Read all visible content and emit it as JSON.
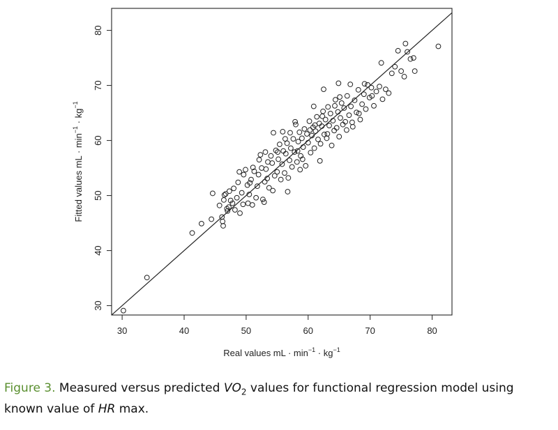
{
  "chart_data": {
    "type": "scatter",
    "xlabel": {
      "prefix": "Real values mL · min",
      "sup1": "−1",
      "mid": " · kg",
      "sup2": "−1"
    },
    "ylabel": {
      "prefix": "Fitted values mL · min",
      "sup1": "−1",
      "mid": " · kg",
      "sup2": "−1"
    },
    "xlim": [
      28.3,
      83.2
    ],
    "ylim": [
      28.3,
      84
    ],
    "xticks": [
      "30",
      "40",
      "50",
      "60",
      "70",
      "80"
    ],
    "yticks": [
      "30",
      "40",
      "50",
      "60",
      "70",
      "80"
    ],
    "xtick_values": [
      30,
      40,
      50,
      60,
      70,
      80
    ],
    "ytick_values": [
      30,
      40,
      50,
      60,
      70,
      80
    ],
    "reference_line": {
      "from": [
        28.3,
        28.3
      ],
      "to": [
        84,
        84
      ]
    },
    "marker": "open-circle",
    "color": "#222222",
    "points": [
      [
        30.2,
        29.1
      ],
      [
        34,
        35.1
      ],
      [
        41.3,
        43.2
      ],
      [
        42.8,
        44.9
      ],
      [
        44.4,
        45.7
      ],
      [
        44.6,
        50.4
      ],
      [
        45.7,
        48.2
      ],
      [
        46.1,
        46.1
      ],
      [
        46.3,
        44.5
      ],
      [
        46.2,
        45.3
      ],
      [
        46.4,
        49.2
      ],
      [
        46.7,
        50.3
      ],
      [
        46.9,
        47.6
      ],
      [
        47.2,
        47.9
      ],
      [
        47.5,
        49.1
      ],
      [
        47.8,
        48.6
      ],
      [
        47.3,
        50.8
      ],
      [
        48,
        51.3
      ],
      [
        48.2,
        47.4
      ],
      [
        48.5,
        49.6
      ],
      [
        48.7,
        52.4
      ],
      [
        49,
        46.8
      ],
      [
        49.3,
        50.5
      ],
      [
        49.6,
        53.8
      ],
      [
        49.9,
        54.7
      ],
      [
        50.2,
        51.9
      ],
      [
        50.5,
        50.2
      ],
      [
        50.8,
        52.9
      ],
      [
        51,
        48.3
      ],
      [
        51.3,
        54.4
      ],
      [
        51.6,
        49.6
      ],
      [
        51.8,
        51.7
      ],
      [
        52,
        53.8
      ],
      [
        52.3,
        57.4
      ],
      [
        52.5,
        55
      ],
      [
        52.7,
        49.3
      ],
      [
        53,
        52.5
      ],
      [
        53.2,
        54.8
      ],
      [
        53.5,
        56.1
      ],
      [
        53.7,
        51.4
      ],
      [
        54,
        57.2
      ],
      [
        54.2,
        55.9
      ],
      [
        54.4,
        61.4
      ],
      [
        54.6,
        53.6
      ],
      [
        54.8,
        58.2
      ],
      [
        55,
        54.3
      ],
      [
        55.2,
        56.6
      ],
      [
        55.4,
        59.3
      ],
      [
        55.6,
        52.9
      ],
      [
        55.8,
        55.7
      ],
      [
        56,
        58.1
      ],
      [
        56.2,
        54.1
      ],
      [
        56.4,
        57.6
      ],
      [
        56.6,
        59.5
      ],
      [
        56.8,
        53.2
      ],
      [
        57,
        56.4
      ],
      [
        57.2,
        58.6
      ],
      [
        57.4,
        55.2
      ],
      [
        57.6,
        60.3
      ],
      [
        57.8,
        57.9
      ],
      [
        58,
        62.9
      ],
      [
        58.2,
        56.1
      ],
      [
        58.4,
        59.8
      ],
      [
        58.6,
        61.5
      ],
      [
        58.8,
        57.2
      ],
      [
        59,
        60.4
      ],
      [
        59.2,
        58.8
      ],
      [
        59.4,
        62.1
      ],
      [
        59.6,
        55.4
      ],
      [
        59.8,
        61.2
      ],
      [
        60,
        59.6
      ],
      [
        60.2,
        63.5
      ],
      [
        60.4,
        57.8
      ],
      [
        60.6,
        60.9
      ],
      [
        60.8,
        62.4
      ],
      [
        61,
        58.6
      ],
      [
        61.2,
        61.7
      ],
      [
        61.4,
        64.3
      ],
      [
        61.6,
        60.2
      ],
      [
        61.8,
        63.1
      ],
      [
        62,
        59.4
      ],
      [
        62.2,
        62.6
      ],
      [
        62.4,
        65.3
      ],
      [
        62.6,
        61.1
      ],
      [
        62.8,
        63.8
      ],
      [
        63,
        60.4
      ],
      [
        63.2,
        66.1
      ],
      [
        63.4,
        62.7
      ],
      [
        63.6,
        64.9
      ],
      [
        63.8,
        59.1
      ],
      [
        64,
        63.6
      ],
      [
        64.2,
        61.8
      ],
      [
        64.4,
        67.4
      ],
      [
        64.6,
        62.3
      ],
      [
        64.8,
        65.2
      ],
      [
        65,
        60.7
      ],
      [
        65.2,
        64.1
      ],
      [
        65.4,
        66.8
      ],
      [
        65.6,
        62.9
      ],
      [
        65.8,
        65.9
      ],
      [
        66,
        63.4
      ],
      [
        66.3,
        68.1
      ],
      [
        66.6,
        64.6
      ],
      [
        66.9,
        66.2
      ],
      [
        67.2,
        62.5
      ],
      [
        67.5,
        67.3
      ],
      [
        67.8,
        65.1
      ],
      [
        68.1,
        69.2
      ],
      [
        68.4,
        63.8
      ],
      [
        68.7,
        66.6
      ],
      [
        69,
        68.4
      ],
      [
        69.3,
        65.7
      ],
      [
        69.6,
        70.1
      ],
      [
        69.9,
        67.8
      ],
      [
        70.2,
        69.6
      ],
      [
        70.6,
        66.3
      ],
      [
        71,
        68.9
      ],
      [
        71.5,
        69.8
      ],
      [
        72,
        67.5
      ],
      [
        72.5,
        69.3
      ],
      [
        73,
        68.6
      ],
      [
        73.5,
        72.2
      ],
      [
        74,
        73.4
      ],
      [
        74.5,
        76.3
      ],
      [
        75,
        72.6
      ],
      [
        75.5,
        71.6
      ],
      [
        75.7,
        77.6
      ],
      [
        76,
        76.1
      ],
      [
        76.5,
        74.8
      ],
      [
        77,
        75
      ],
      [
        77.2,
        72.6
      ],
      [
        81,
        77.1
      ],
      [
        47,
        47.2
      ],
      [
        49.5,
        48.4
      ],
      [
        50.6,
        52.3
      ],
      [
        52.1,
        56.5
      ],
      [
        53.4,
        53.1
      ],
      [
        54.3,
        50.9
      ],
      [
        55.1,
        57.9
      ],
      [
        56.3,
        60.3
      ],
      [
        57.1,
        61.4
      ],
      [
        58.3,
        58.1
      ],
      [
        59.1,
        56.6
      ],
      [
        60.3,
        61.9
      ],
      [
        61.1,
        62.8
      ],
      [
        62.3,
        64.4
      ],
      [
        63.1,
        61.2
      ],
      [
        64.3,
        66.3
      ],
      [
        65.1,
        67.9
      ],
      [
        66.2,
        61.9
      ],
      [
        67.1,
        63.3
      ],
      [
        68.2,
        64.9
      ],
      [
        69.1,
        70.3
      ],
      [
        70.3,
        68.1
      ],
      [
        61.9,
        56.3
      ],
      [
        58.7,
        54.7
      ],
      [
        53.1,
        57.9
      ],
      [
        51.1,
        55.1
      ],
      [
        56.7,
        50.7
      ],
      [
        60.9,
        66.2
      ],
      [
        62.5,
        69.3
      ],
      [
        64.9,
        70.4
      ],
      [
        66.8,
        70.2
      ],
      [
        71.8,
        74.1
      ],
      [
        55.9,
        61.6
      ],
      [
        57.9,
        63.4
      ],
      [
        48.9,
        54.3
      ],
      [
        50.3,
        48.6
      ],
      [
        52.9,
        48.8
      ],
      [
        46.5,
        50.1
      ]
    ]
  },
  "caption": {
    "label": "Figure 3.",
    "text_before_vo": " Measured versus predicted ",
    "vo_var": "VO",
    "vo_sub": "2",
    "text_before_hr": " values for functional regression model using known value of ",
    "hr_var": "HR",
    "text_after_hr": " max."
  }
}
